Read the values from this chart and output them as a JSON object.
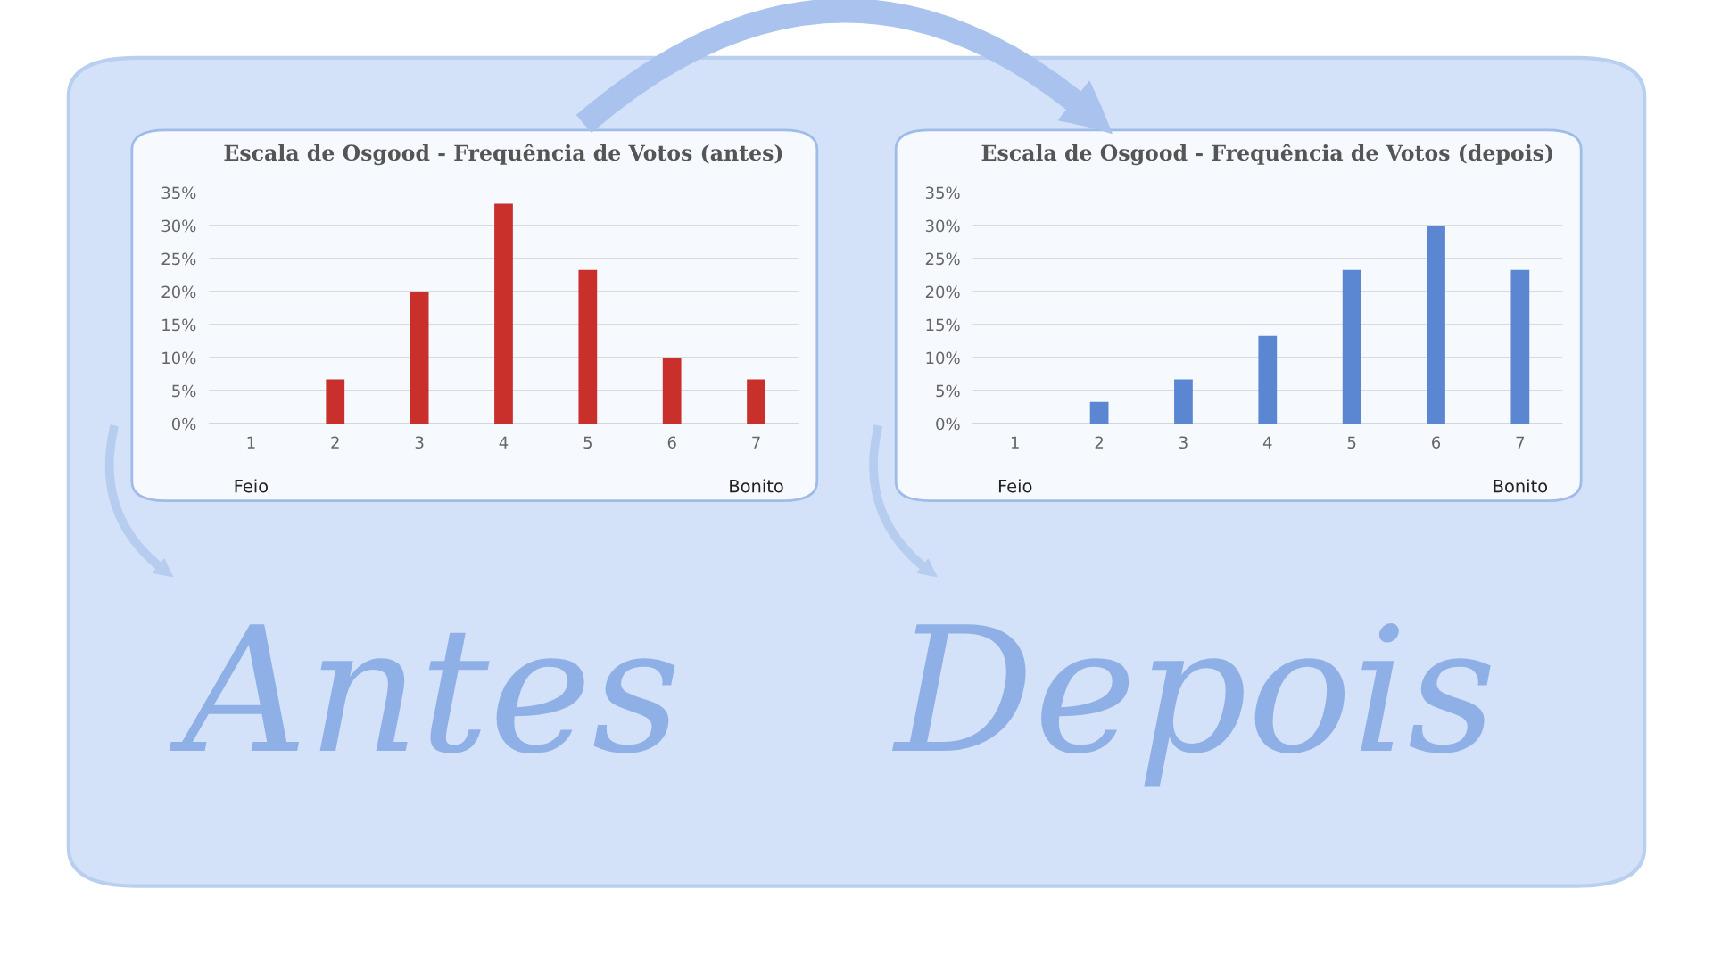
{
  "chart_data": [
    {
      "type": "bar",
      "title": "Escala de Osgood - Frequência de Votos (antes)",
      "categories": [
        "1",
        "2",
        "3",
        "4",
        "5",
        "6",
        "7"
      ],
      "values": [
        0,
        6.7,
        20,
        33.3,
        23.3,
        10,
        6.7
      ],
      "color": "#c9302c",
      "ylim": [
        0,
        35
      ],
      "yticks": [
        {
          "value": 0,
          "label": "0%"
        },
        {
          "value": 5,
          "label": "5%"
        },
        {
          "value": 10,
          "label": "10%"
        },
        {
          "value": 15,
          "label": "15%"
        },
        {
          "value": 20,
          "label": "20%"
        },
        {
          "value": 25,
          "label": "25%"
        },
        {
          "value": 30,
          "label": "30%"
        },
        {
          "value": 35,
          "label": "35%"
        }
      ],
      "grid": "y",
      "legend": false,
      "annotations": [
        "Feio",
        "Bonito",
        "Antes"
      ]
    },
    {
      "type": "bar",
      "title": "Escala de Osgood - Frequência de Votos (depois)",
      "categories": [
        "1",
        "2",
        "3",
        "4",
        "5",
        "6",
        "7"
      ],
      "values": [
        0,
        3.3,
        6.7,
        13.3,
        23.3,
        30,
        23.3
      ],
      "color": "#5b86d2",
      "ylim": [
        0,
        35
      ],
      "yticks": [
        {
          "value": 0,
          "label": "0%"
        },
        {
          "value": 5,
          "label": "5%"
        },
        {
          "value": 10,
          "label": "10%"
        },
        {
          "value": 15,
          "label": "15%"
        },
        {
          "value": 20,
          "label": "20%"
        },
        {
          "value": 25,
          "label": "25%"
        },
        {
          "value": 30,
          "label": "30%"
        },
        {
          "value": 35,
          "label": "35%"
        }
      ],
      "grid": "y",
      "legend": false,
      "annotations": [
        "Feio",
        "Bonito",
        "Depois"
      ]
    }
  ]
}
